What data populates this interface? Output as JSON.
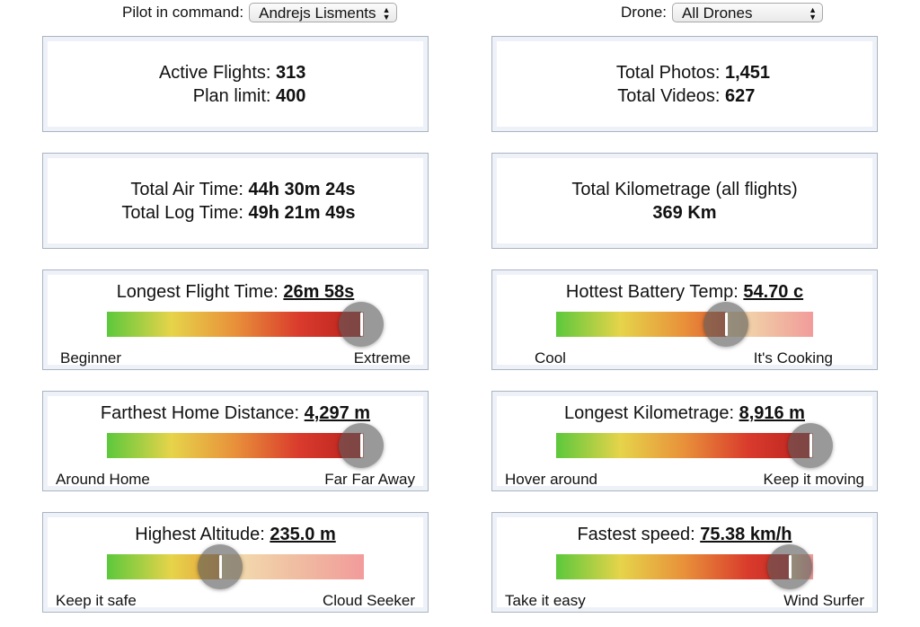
{
  "filters": {
    "pilot": {
      "label": "Pilot in command:",
      "value": "Andrejs Lisments"
    },
    "drone": {
      "label": "Drone:",
      "value": "All Drones"
    }
  },
  "stats": {
    "active_flights": {
      "label": "Active Flights: ",
      "value": "313"
    },
    "plan_limit": {
      "label": "Plan limit: ",
      "value": "400"
    },
    "total_photos": {
      "label": "Total Photos: ",
      "value": "1,451"
    },
    "total_videos": {
      "label": "Total Videos: ",
      "value": "627"
    },
    "total_air_time": {
      "label": "Total Air Time: ",
      "value": "44h 30m 24s"
    },
    "total_log_time": {
      "label": "Total Log Time: ",
      "value": "49h 21m 49s"
    },
    "kilometrage": {
      "label": "Total Kilometrage (all flights)",
      "value": "369 Km"
    }
  },
  "meters": {
    "longest_flight": {
      "title": "Longest Flight Time: ",
      "value": "26m 58s",
      "low": "Beginner",
      "high": "Extreme",
      "level": 0.99
    },
    "hottest_battery": {
      "title": "Hottest Battery Temp: ",
      "value": "54.70 c",
      "low": "Cool",
      "high": "It's Cooking",
      "level": 0.66
    },
    "farthest_home": {
      "title": "Farthest Home Distance: ",
      "value": "4,297 m",
      "low": "Around Home",
      "high": "Far Far Away",
      "level": 0.99
    },
    "longest_km": {
      "title": "Longest Kilometrage: ",
      "value": "8,916 m",
      "low": "Hover around",
      "high": "Keep it moving",
      "level": 0.99
    },
    "highest_altitude": {
      "title": "Highest Altitude: ",
      "value": "235.0 m",
      "low": "Keep it safe",
      "high": "Cloud Seeker",
      "level": 0.44
    },
    "fastest_speed": {
      "title": "Fastest speed: ",
      "value": "75.38 km/h",
      "low": "Take it easy",
      "high": "Wind Surfer",
      "level": 0.91
    }
  }
}
